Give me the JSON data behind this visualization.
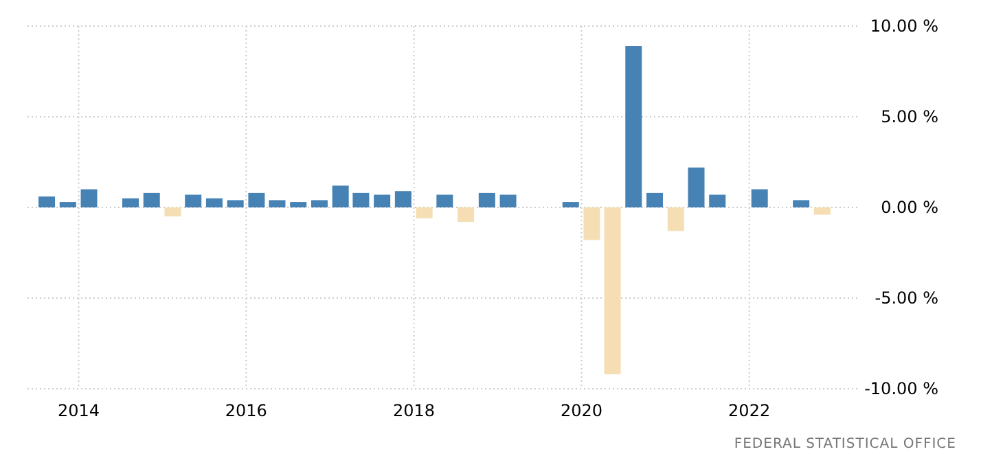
{
  "chart_data": {
    "type": "bar",
    "x": [
      "2013-08-15",
      "2013-11-15",
      "2014-02-15",
      "2014-05-15",
      "2014-08-15",
      "2014-11-15",
      "2015-02-15",
      "2015-05-15",
      "2015-08-15",
      "2015-11-15",
      "2016-02-15",
      "2016-05-15",
      "2016-08-15",
      "2016-11-15",
      "2017-02-15",
      "2017-05-15",
      "2017-08-15",
      "2017-11-15",
      "2018-02-15",
      "2018-05-15",
      "2018-08-15",
      "2018-11-15",
      "2019-02-15",
      "2019-05-15",
      "2019-08-15",
      "2019-11-15",
      "2020-02-15",
      "2020-05-15",
      "2020-08-15",
      "2020-11-15",
      "2021-02-15",
      "2021-05-15",
      "2021-08-15",
      "2021-11-15",
      "2022-02-15",
      "2022-05-15",
      "2022-08-15",
      "2022-11-15",
      "2023-02-15"
    ],
    "values": [
      0.6,
      0.3,
      1.0,
      0,
      0.5,
      0.8,
      -0.5,
      0.7,
      0.5,
      0.4,
      0.8,
      0.4,
      0.3,
      0.4,
      1.2,
      0.8,
      0.7,
      0.9,
      -0.6,
      0.7,
      -0.8,
      0.8,
      0.7,
      0,
      0,
      0.3,
      -1.8,
      -9.2,
      8.9,
      0.8,
      -1.3,
      2.2,
      0.7,
      0,
      1.0,
      0,
      0.4,
      -0.4,
      0
    ],
    "colors": [
      "#4682b4",
      "#4682b4",
      "#4682b4",
      "#4682b4",
      "#4682b4",
      "#4682b4",
      "#f5deb3",
      "#4682b4",
      "#4682b4",
      "#4682b4",
      "#4682b4",
      "#4682b4",
      "#4682b4",
      "#4682b4",
      "#4682b4",
      "#4682b4",
      "#4682b4",
      "#4682b4",
      "#f5deb3",
      "#4682b4",
      "#f5deb3",
      "#4682b4",
      "#4682b4",
      "#4682b4",
      "#4682b4",
      "#4682b4",
      "#f5deb3",
      "#f5deb3",
      "#4682b4",
      "#4682b4",
      "#f5deb3",
      "#4682b4",
      "#4682b4",
      "#4682b4",
      "#4682b4",
      "#f5deb3",
      "#4682b4",
      "#f5deb3",
      "#f5deb3"
    ],
    "xlim": [
      "2013-05-23",
      "2023-04-23"
    ],
    "xticks": [
      "2014",
      "2016",
      "2018",
      "2020",
      "2022"
    ],
    "ylim": [
      -10,
      10
    ],
    "yticks": [
      {
        "value": -10,
        "label": "-10.00 %"
      },
      {
        "value": -5,
        "label": "-5.00 %"
      },
      {
        "value": 0,
        "label": "0.00 %"
      },
      {
        "value": 5,
        "label": "5.00 %"
      },
      {
        "value": 10,
        "label": "10.00 %"
      }
    ],
    "grid": true,
    "annotations": [
      "FEDERAL STATISTICAL OFFICE"
    ]
  }
}
